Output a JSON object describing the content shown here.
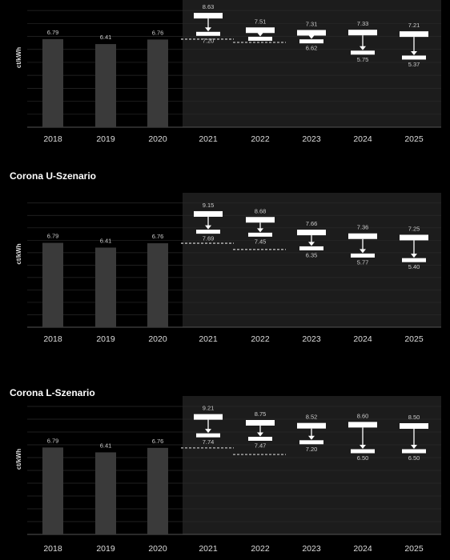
{
  "colors": {
    "background": "#000000",
    "forecast_background": "#1c1c1c",
    "historic_bar": "#3a3a3a",
    "range_marker": "#ffffff",
    "dashed_line": "#bbbbbb",
    "grid": "#2a2a2a"
  },
  "chart_data": [
    {
      "type": "bar",
      "title": "",
      "ylabel": "ct/kWh",
      "categories": [
        "2018",
        "2019",
        "2020",
        "2021",
        "2022",
        "2023",
        "2024",
        "2025"
      ],
      "historic": {
        "categories": [
          "2018",
          "2019",
          "2020"
        ],
        "values": [
          6.79,
          6.41,
          6.76
        ]
      },
      "forecast_ranges": [
        {
          "year": "2021",
          "high": 8.63,
          "low": 7.2
        },
        {
          "year": "2022",
          "high": 7.51,
          "low": 6.82
        },
        {
          "year": "2023",
          "high": 7.31,
          "low": 6.62
        },
        {
          "year": "2024",
          "high": 7.33,
          "low": 5.75
        },
        {
          "year": "2025",
          "high": 7.21,
          "low": 5.37
        }
      ],
      "high_labels": [
        "8.63",
        "7.51",
        "7.31",
        "7.33",
        "7.21"
      ],
      "low_labels": [
        "7.20",
        "",
        "6.62",
        "5.75",
        "5.37"
      ],
      "dashed_lines": [
        {
          "year": "2021",
          "value": 6.79
        },
        {
          "year": "2022",
          "value": 6.54
        }
      ],
      "ylim": [
        0,
        9.5
      ],
      "grid": true
    },
    {
      "type": "bar",
      "title": "Corona U-Szenario",
      "ylabel": "ct/kWh",
      "categories": [
        "2018",
        "2019",
        "2020",
        "2021",
        "2022",
        "2023",
        "2024",
        "2025"
      ],
      "historic": {
        "categories": [
          "2018",
          "2019",
          "2020"
        ],
        "values": [
          6.79,
          6.41,
          6.76
        ]
      },
      "forecast_ranges": [
        {
          "year": "2021",
          "high": 9.15,
          "low": 7.69
        },
        {
          "year": "2022",
          "high": 8.68,
          "low": 7.45
        },
        {
          "year": "2023",
          "high": 7.66,
          "low": 6.35
        },
        {
          "year": "2024",
          "high": 7.36,
          "low": 5.77
        },
        {
          "year": "2025",
          "high": 7.25,
          "low": 5.4
        }
      ],
      "high_labels": [
        "9.15",
        "8.68",
        "7.66",
        "7.36",
        "7.25"
      ],
      "low_labels": [
        "7.69",
        "7.45",
        "6.35",
        "5.77",
        "5.40"
      ],
      "dashed_lines": [
        {
          "year": "2021",
          "value": 6.76
        },
        {
          "year": "2022",
          "value": 6.26
        }
      ],
      "ylim": [
        0,
        10.5
      ],
      "grid": true
    },
    {
      "type": "bar",
      "title": "Corona L-Szenario",
      "ylabel": "ct/kWh",
      "categories": [
        "2018",
        "2019",
        "2020",
        "2021",
        "2022",
        "2023",
        "2024",
        "2025"
      ],
      "historic": {
        "categories": [
          "2018",
          "2019",
          "2020"
        ],
        "values": [
          6.79,
          6.41,
          6.76
        ]
      },
      "forecast_ranges": [
        {
          "year": "2021",
          "high": 9.21,
          "low": 7.74
        },
        {
          "year": "2022",
          "high": 8.75,
          "low": 7.47
        },
        {
          "year": "2023",
          "high": 8.52,
          "low": 7.2
        },
        {
          "year": "2024",
          "high": 8.6,
          "low": 6.5
        },
        {
          "year": "2025",
          "high": 8.5,
          "low": 6.5
        }
      ],
      "high_labels": [
        "9.21",
        "8.75",
        "8.52",
        "8.60",
        "8.50"
      ],
      "low_labels": [
        "7.74",
        "7.47",
        "7.20",
        "6.50",
        "6.50"
      ],
      "dashed_lines": [
        {
          "year": "2021",
          "value": 6.76
        },
        {
          "year": "2022",
          "value": 6.24
        }
      ],
      "ylim": [
        0,
        10.5
      ],
      "grid": true
    }
  ]
}
